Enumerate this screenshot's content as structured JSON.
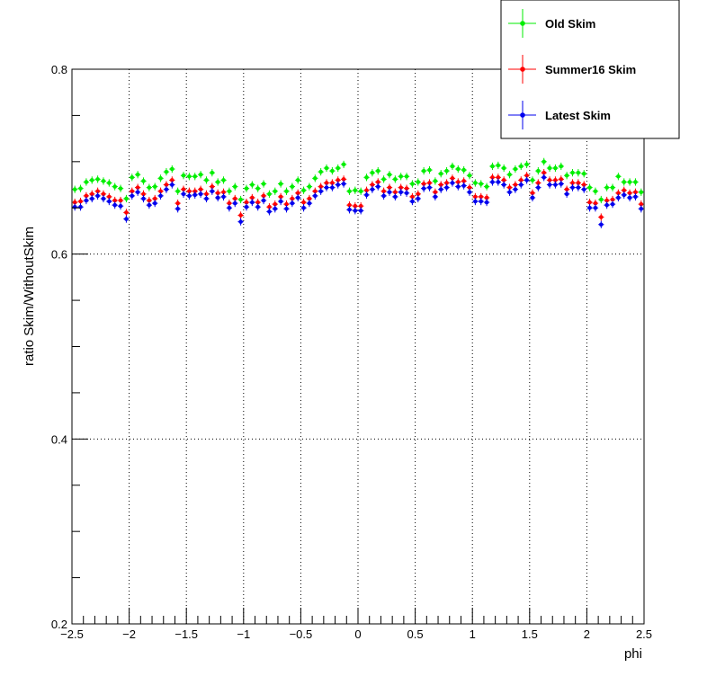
{
  "chart_data": {
    "type": "scatter",
    "title": "",
    "xlabel": "phi",
    "ylabel": "ratio Skim/WithoutSkim",
    "xlim": [
      -2.5,
      2.5
    ],
    "ylim": [
      0.2,
      0.8
    ],
    "x_ticks": [
      -2.5,
      -2,
      -1.5,
      -1,
      -0.5,
      0,
      0.5,
      1,
      1.5,
      2,
      2.5
    ],
    "x_tick_labels": [
      "−2.5",
      "−2",
      "−1.5",
      "−1",
      "−0.5",
      "0",
      "0.5",
      "1",
      "1.5",
      "2",
      "2.5"
    ],
    "y_ticks": [
      0.2,
      0.4,
      0.6,
      0.8
    ],
    "y_tick_labels": [
      "0.2",
      "0.4",
      "0.6",
      "0.8"
    ],
    "grid": true,
    "legend_position": "top-right",
    "x": [
      -2.475,
      -2.425,
      -2.375,
      -2.325,
      -2.275,
      -2.225,
      -2.175,
      -2.125,
      -2.075,
      -2.025,
      -1.975,
      -1.925,
      -1.875,
      -1.825,
      -1.775,
      -1.725,
      -1.675,
      -1.625,
      -1.575,
      -1.525,
      -1.475,
      -1.425,
      -1.375,
      -1.325,
      -1.275,
      -1.225,
      -1.175,
      -1.125,
      -1.075,
      -1.025,
      -0.975,
      -0.925,
      -0.875,
      -0.825,
      -0.775,
      -0.725,
      -0.675,
      -0.625,
      -0.575,
      -0.525,
      -0.475,
      -0.425,
      -0.375,
      -0.325,
      -0.275,
      -0.225,
      -0.175,
      -0.125,
      -0.075,
      -0.025,
      0.025,
      0.075,
      0.125,
      0.175,
      0.225,
      0.275,
      0.325,
      0.375,
      0.425,
      0.475,
      0.525,
      0.575,
      0.625,
      0.675,
      0.725,
      0.775,
      0.825,
      0.875,
      0.925,
      0.975,
      1.025,
      1.075,
      1.125,
      1.175,
      1.225,
      1.275,
      1.325,
      1.375,
      1.425,
      1.475,
      1.525,
      1.575,
      1.625,
      1.675,
      1.725,
      1.775,
      1.825,
      1.875,
      1.925,
      1.975,
      2.025,
      2.075,
      2.125,
      2.175,
      2.225,
      2.275,
      2.325,
      2.375,
      2.425,
      2.475
    ],
    "series": [
      {
        "name": "Old Skim",
        "color": "#00ee00",
        "values": [
          0.67,
          0.671,
          0.678,
          0.68,
          0.681,
          0.679,
          0.677,
          0.673,
          0.671,
          0.66,
          0.683,
          0.686,
          0.679,
          0.672,
          0.673,
          0.682,
          0.689,
          0.692,
          0.668,
          0.685,
          0.684,
          0.684,
          0.686,
          0.68,
          0.688,
          0.678,
          0.68,
          0.668,
          0.673,
          0.659,
          0.671,
          0.675,
          0.671,
          0.676,
          0.665,
          0.668,
          0.676,
          0.668,
          0.673,
          0.68,
          0.669,
          0.673,
          0.682,
          0.689,
          0.693,
          0.69,
          0.693,
          0.697,
          0.668,
          0.669,
          0.668,
          0.683,
          0.688,
          0.69,
          0.681,
          0.686,
          0.681,
          0.684,
          0.684,
          0.676,
          0.678,
          0.69,
          0.691,
          0.679,
          0.687,
          0.69,
          0.695,
          0.692,
          0.691,
          0.685,
          0.677,
          0.676,
          0.673,
          0.695,
          0.696,
          0.693,
          0.686,
          0.692,
          0.695,
          0.697,
          0.68,
          0.69,
          0.7,
          0.693,
          0.693,
          0.695,
          0.685,
          0.688,
          0.688,
          0.687,
          0.672,
          0.668,
          0.659,
          0.672,
          0.672,
          0.684,
          0.678,
          0.678,
          0.678,
          0.667
        ],
        "error": 0.004
      },
      {
        "name": "Summer16 Skim",
        "color": "#ff0000",
        "values": [
          0.656,
          0.657,
          0.663,
          0.665,
          0.668,
          0.665,
          0.662,
          0.658,
          0.658,
          0.645,
          0.668,
          0.672,
          0.665,
          0.658,
          0.66,
          0.668,
          0.675,
          0.68,
          0.655,
          0.67,
          0.668,
          0.668,
          0.67,
          0.665,
          0.673,
          0.666,
          0.667,
          0.655,
          0.66,
          0.642,
          0.656,
          0.661,
          0.656,
          0.663,
          0.651,
          0.654,
          0.662,
          0.654,
          0.66,
          0.666,
          0.656,
          0.66,
          0.668,
          0.673,
          0.677,
          0.677,
          0.68,
          0.681,
          0.653,
          0.652,
          0.652,
          0.669,
          0.675,
          0.678,
          0.668,
          0.672,
          0.667,
          0.672,
          0.671,
          0.662,
          0.665,
          0.676,
          0.677,
          0.667,
          0.675,
          0.677,
          0.682,
          0.678,
          0.679,
          0.672,
          0.662,
          0.662,
          0.661,
          0.683,
          0.683,
          0.68,
          0.672,
          0.675,
          0.68,
          0.685,
          0.666,
          0.677,
          0.688,
          0.68,
          0.68,
          0.681,
          0.67,
          0.677,
          0.677,
          0.675,
          0.656,
          0.655,
          0.64,
          0.658,
          0.659,
          0.666,
          0.669,
          0.666,
          0.667,
          0.654
        ],
        "error": 0.004
      },
      {
        "name": "Latest Skim",
        "color": "#0000ee",
        "values": [
          0.651,
          0.651,
          0.658,
          0.66,
          0.663,
          0.66,
          0.657,
          0.653,
          0.652,
          0.638,
          0.663,
          0.667,
          0.66,
          0.653,
          0.655,
          0.663,
          0.67,
          0.675,
          0.649,
          0.665,
          0.663,
          0.664,
          0.665,
          0.66,
          0.668,
          0.661,
          0.662,
          0.65,
          0.655,
          0.635,
          0.651,
          0.656,
          0.651,
          0.658,
          0.646,
          0.649,
          0.657,
          0.649,
          0.655,
          0.661,
          0.65,
          0.655,
          0.663,
          0.668,
          0.672,
          0.672,
          0.675,
          0.676,
          0.648,
          0.647,
          0.647,
          0.664,
          0.67,
          0.673,
          0.663,
          0.667,
          0.662,
          0.667,
          0.666,
          0.657,
          0.66,
          0.671,
          0.672,
          0.662,
          0.67,
          0.672,
          0.677,
          0.673,
          0.674,
          0.667,
          0.657,
          0.657,
          0.656,
          0.678,
          0.678,
          0.675,
          0.667,
          0.67,
          0.675,
          0.68,
          0.661,
          0.672,
          0.683,
          0.675,
          0.675,
          0.676,
          0.665,
          0.672,
          0.672,
          0.67,
          0.65,
          0.65,
          0.632,
          0.653,
          0.654,
          0.661,
          0.664,
          0.661,
          0.662,
          0.649
        ],
        "error": 0.004
      }
    ]
  },
  "legend": {
    "entries": [
      "Old Skim",
      "Summer16 Skim",
      "Latest Skim"
    ]
  }
}
